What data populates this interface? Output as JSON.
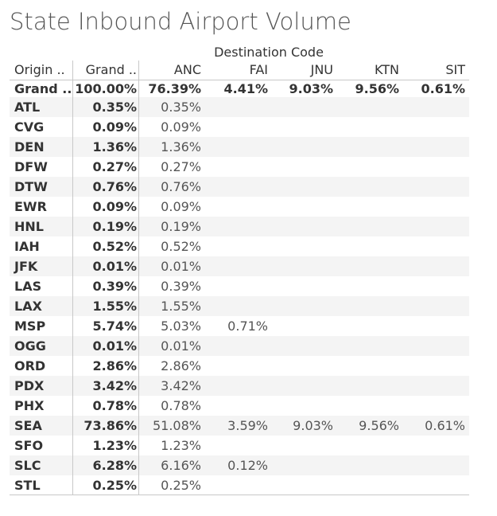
{
  "title": "State Inbound Airport Volume",
  "dest_header": "Destination Code",
  "columns": {
    "origin": "Origin ..",
    "grand": "Grand ..",
    "anc": "ANC",
    "fai": "FAI",
    "jnu": "JNU",
    "ktn": "KTN",
    "sit": "SIT"
  },
  "chart_data": {
    "type": "table",
    "title": "State Inbound Airport Volume",
    "column_group_label": "Destination Code",
    "columns": [
      "Origin ..",
      "Grand ..",
      "ANC",
      "FAI",
      "JNU",
      "KTN",
      "SIT"
    ],
    "grand_total": {
      "origin": "Grand ..",
      "grand": "100.00%",
      "anc": "76.39%",
      "fai": "4.41%",
      "jnu": "9.03%",
      "ktn": "9.56%",
      "sit": "0.61%"
    },
    "rows": [
      {
        "origin": "ATL",
        "grand": "0.35%",
        "anc": "0.35%",
        "fai": "",
        "jnu": "",
        "ktn": "",
        "sit": ""
      },
      {
        "origin": "CVG",
        "grand": "0.09%",
        "anc": "0.09%",
        "fai": "",
        "jnu": "",
        "ktn": "",
        "sit": ""
      },
      {
        "origin": "DEN",
        "grand": "1.36%",
        "anc": "1.36%",
        "fai": "",
        "jnu": "",
        "ktn": "",
        "sit": ""
      },
      {
        "origin": "DFW",
        "grand": "0.27%",
        "anc": "0.27%",
        "fai": "",
        "jnu": "",
        "ktn": "",
        "sit": ""
      },
      {
        "origin": "DTW",
        "grand": "0.76%",
        "anc": "0.76%",
        "fai": "",
        "jnu": "",
        "ktn": "",
        "sit": ""
      },
      {
        "origin": "EWR",
        "grand": "0.09%",
        "anc": "0.09%",
        "fai": "",
        "jnu": "",
        "ktn": "",
        "sit": ""
      },
      {
        "origin": "HNL",
        "grand": "0.19%",
        "anc": "0.19%",
        "fai": "",
        "jnu": "",
        "ktn": "",
        "sit": ""
      },
      {
        "origin": "IAH",
        "grand": "0.52%",
        "anc": "0.52%",
        "fai": "",
        "jnu": "",
        "ktn": "",
        "sit": ""
      },
      {
        "origin": "JFK",
        "grand": "0.01%",
        "anc": "0.01%",
        "fai": "",
        "jnu": "",
        "ktn": "",
        "sit": ""
      },
      {
        "origin": "LAS",
        "grand": "0.39%",
        "anc": "0.39%",
        "fai": "",
        "jnu": "",
        "ktn": "",
        "sit": ""
      },
      {
        "origin": "LAX",
        "grand": "1.55%",
        "anc": "1.55%",
        "fai": "",
        "jnu": "",
        "ktn": "",
        "sit": ""
      },
      {
        "origin": "MSP",
        "grand": "5.74%",
        "anc": "5.03%",
        "fai": "0.71%",
        "jnu": "",
        "ktn": "",
        "sit": ""
      },
      {
        "origin": "OGG",
        "grand": "0.01%",
        "anc": "0.01%",
        "fai": "",
        "jnu": "",
        "ktn": "",
        "sit": ""
      },
      {
        "origin": "ORD",
        "grand": "2.86%",
        "anc": "2.86%",
        "fai": "",
        "jnu": "",
        "ktn": "",
        "sit": ""
      },
      {
        "origin": "PDX",
        "grand": "3.42%",
        "anc": "3.42%",
        "fai": "",
        "jnu": "",
        "ktn": "",
        "sit": ""
      },
      {
        "origin": "PHX",
        "grand": "0.78%",
        "anc": "0.78%",
        "fai": "",
        "jnu": "",
        "ktn": "",
        "sit": ""
      },
      {
        "origin": "SEA",
        "grand": "73.86%",
        "anc": "51.08%",
        "fai": "3.59%",
        "jnu": "9.03%",
        "ktn": "9.56%",
        "sit": "0.61%"
      },
      {
        "origin": "SFO",
        "grand": "1.23%",
        "anc": "1.23%",
        "fai": "",
        "jnu": "",
        "ktn": "",
        "sit": ""
      },
      {
        "origin": "SLC",
        "grand": "6.28%",
        "anc": "6.16%",
        "fai": "0.12%",
        "jnu": "",
        "ktn": "",
        "sit": ""
      },
      {
        "origin": "STL",
        "grand": "0.25%",
        "anc": "0.25%",
        "fai": "",
        "jnu": "",
        "ktn": "",
        "sit": ""
      }
    ]
  }
}
